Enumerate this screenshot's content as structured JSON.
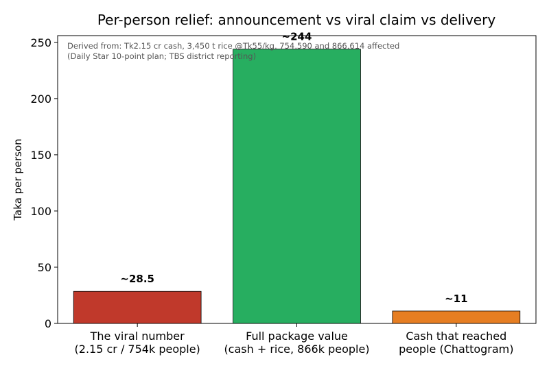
{
  "chart_data": {
    "type": "bar",
    "title": "Per-person relief: announcement vs viral claim vs delivery",
    "xlabel": "",
    "ylabel": "Taka per person",
    "ylim": [
      0,
      256
    ],
    "yticks": [
      0,
      50,
      100,
      150,
      200,
      250
    ],
    "categories": [
      [
        "The viral number",
        "(2.15 cr / 754k people)"
      ],
      [
        "Full package value",
        "(cash + rice, 866k people)"
      ],
      [
        "Cash that reached",
        "people (Chattogram)"
      ]
    ],
    "values": [
      28.5,
      244,
      11
    ],
    "data_labels": [
      "~28.5",
      "~244",
      "~11"
    ],
    "colors": [
      "#c0392b",
      "#27ae60",
      "#e67e22"
    ],
    "annotation": [
      "Derived from: Tk2.15 cr cash, 3,450 t rice @Tk55/kg, 754,590 and 866,614 affected",
      "(Daily Star 10-point plan; TBS district reporting)"
    ],
    "grid": false,
    "legend": "none"
  }
}
